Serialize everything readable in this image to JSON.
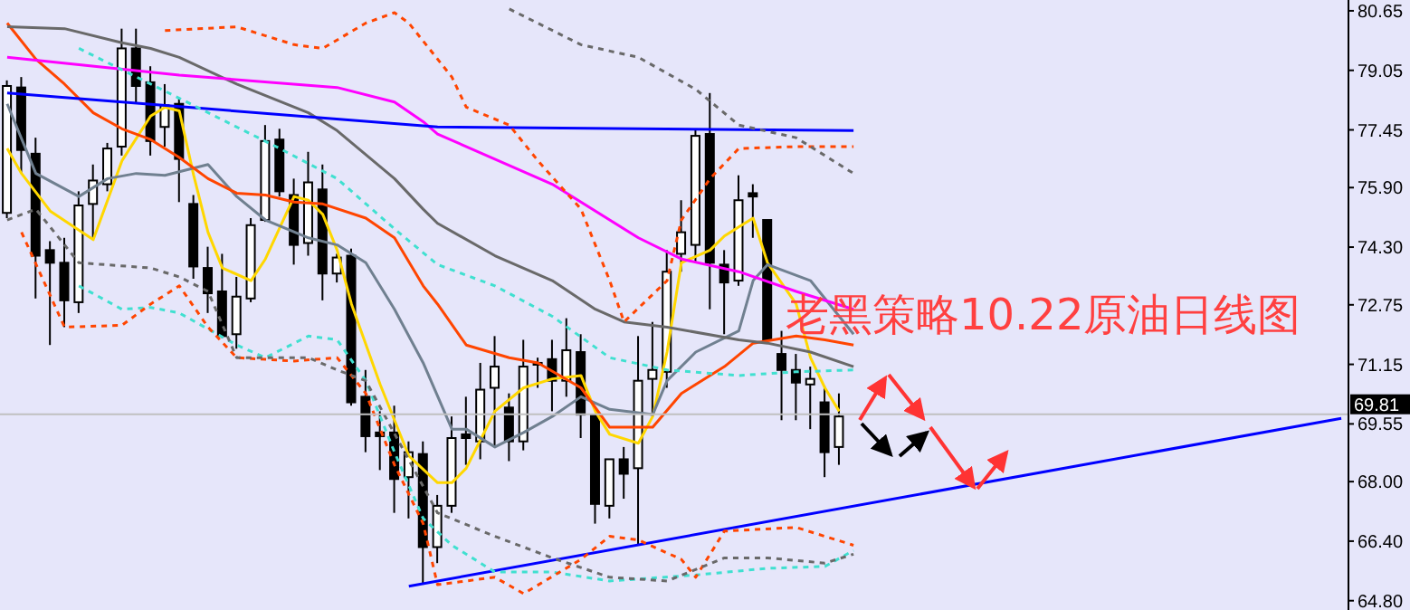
{
  "chart_data": {
    "type": "candlestick",
    "title": "老黑策略10.22原油日线图",
    "categories": [
      null,
      null,
      null,
      null,
      null,
      null,
      null,
      null,
      null,
      null,
      null,
      null,
      null,
      null,
      null,
      null,
      null,
      null,
      null,
      null,
      null,
      null,
      null,
      null,
      null,
      null,
      null,
      null,
      null,
      null,
      null,
      null,
      null,
      null,
      null,
      null,
      null,
      null,
      null,
      null,
      null,
      null,
      null,
      null,
      null,
      null,
      null,
      null,
      null,
      null,
      null,
      null,
      null,
      null,
      null,
      null,
      null,
      null,
      null,
      null,
      null,
      null,
      null,
      null,
      null,
      null,
      null,
      null,
      null,
      null,
      null,
      null,
      null,
      null,
      null,
      null,
      null,
      null,
      null,
      null,
      null,
      null,
      null,
      null,
      null,
      null,
      null,
      null,
      null,
      null,
      null,
      null,
      null,
      null
    ],
    "ohlc": [
      [
        75.22,
        78.78,
        75.08,
        78.63
      ],
      [
        78.59,
        78.87,
        76.28,
        76.91
      ],
      [
        76.81,
        77.24,
        72.92,
        74.07
      ],
      [
        74.22,
        74.46,
        71.67,
        73.88
      ],
      [
        73.88,
        74.55,
        72.15,
        72.87
      ],
      [
        72.82,
        75.8,
        72.53,
        75.42
      ],
      [
        75.46,
        76.52,
        74.55,
        76.09
      ],
      [
        75.99,
        77.1,
        75.8,
        76.95
      ],
      [
        77.0,
        80.17,
        76.76,
        79.64
      ],
      [
        79.64,
        80.17,
        78.15,
        78.63
      ],
      [
        78.73,
        79.16,
        76.76,
        77.15
      ],
      [
        77.53,
        78.68,
        77.0,
        78.11
      ],
      [
        78.15,
        78.3,
        75.51,
        76.67
      ],
      [
        75.46,
        75.7,
        73.45,
        73.78
      ],
      [
        73.74,
        74.31,
        72.53,
        73.06
      ],
      [
        73.11,
        74.12,
        71.86,
        71.91
      ],
      [
        71.96,
        73.5,
        71.57,
        72.97
      ],
      [
        72.92,
        75.08,
        72.82,
        74.89
      ],
      [
        75.03,
        77.58,
        74.98,
        77.15
      ],
      [
        77.19,
        77.48,
        75.66,
        75.8
      ],
      [
        75.7,
        76.14,
        73.83,
        74.36
      ],
      [
        74.41,
        76.86,
        74.07,
        76.04
      ],
      [
        75.85,
        76.52,
        72.87,
        73.59
      ],
      [
        73.59,
        74.12,
        73.35,
        74.02
      ],
      [
        74.07,
        74.26,
        70.04,
        70.13
      ],
      [
        70.28,
        71.0,
        68.79,
        69.22
      ],
      [
        69.32,
        69.89,
        68.31,
        69.22
      ],
      [
        69.32,
        70.04,
        67.16,
        68.07
      ],
      [
        68.12,
        69.08,
        67.01,
        68.79
      ],
      [
        68.74,
        69.08,
        65.23,
        66.24
      ],
      [
        66.24,
        67.64,
        65.81,
        67.35
      ],
      [
        67.35,
        69.75,
        67.16,
        69.17
      ],
      [
        69.27,
        70.28,
        68.45,
        69.17
      ],
      [
        69.08,
        71.19,
        68.6,
        70.47
      ],
      [
        70.52,
        71.91,
        68.93,
        71.09
      ],
      [
        69.99,
        70.37,
        68.55,
        69.08
      ],
      [
        69.08,
        71.81,
        68.84,
        71.09
      ],
      [
        71.19,
        71.33,
        70.52,
        71.14
      ],
      [
        71.29,
        71.81,
        69.89,
        70.71
      ],
      [
        70.71,
        72.39,
        70.28,
        71.53
      ],
      [
        71.48,
        71.96,
        69.17,
        69.8
      ],
      [
        69.8,
        69.8,
        66.87,
        67.4
      ],
      [
        67.35,
        68.6,
        67.01,
        68.6
      ],
      [
        68.6,
        68.93,
        67.54,
        68.21
      ],
      [
        68.36,
        71.91,
        66.29,
        70.71
      ],
      [
        70.76,
        72.29,
        69.75,
        71.0
      ],
      [
        70.95,
        74.22,
        70.52,
        73.64
      ],
      [
        74.12,
        75.56,
        73.64,
        74.7
      ],
      [
        74.36,
        77.48,
        73.88,
        77.29
      ],
      [
        77.34,
        78.44,
        72.63,
        73.88
      ],
      [
        73.83,
        74.22,
        71.96,
        73.35
      ],
      [
        73.4,
        76.23,
        73.26,
        75.56
      ],
      [
        75.75,
        75.99,
        74.55,
        75.66
      ],
      [
        75.03,
        75.03,
        71.72,
        71.81
      ],
      [
        71.43,
        72.05,
        69.65,
        71.0
      ],
      [
        71.0,
        71.43,
        69.65,
        70.66
      ],
      [
        70.61,
        71.09,
        69.41,
        70.76
      ],
      [
        70.13,
        70.57,
        68.12,
        68.79
      ],
      [
        68.93,
        70.37,
        68.45,
        69.75
      ],
      null,
      null,
      null,
      null,
      null,
      null,
      null,
      null,
      null,
      null,
      null,
      null,
      null,
      null,
      null,
      null,
      null,
      null,
      null,
      null,
      null,
      null,
      null,
      null,
      null,
      null,
      null,
      null,
      null,
      null,
      null,
      null,
      null,
      null,
      null
    ],
    "series": [
      {
        "type": "line",
        "color": "#ffd700",
        "line_style": "solid",
        "values": [
          76.95,
          76.28,
          null,
          75.27,
          null,
          null,
          74.5,
          null,
          76.62,
          null,
          77.82,
          78.06,
          77.96,
          76.23,
          74.7,
          73.74,
          null,
          73.4,
          73.98,
          null,
          75.66,
          75.56,
          75.18,
          74.22,
          72.77,
          null,
          70.61,
          null,
          68.69,
          null,
          67.97,
          67.97,
          68.36,
          null,
          69.89,
          null,
          70.52,
          null,
          70.76,
          null,
          70.85,
          69.89,
          69.27,
          null,
          69.03,
          69.75,
          71.48,
          73.88,
          null,
          74.22,
          74.6,
          74.84,
          75.08,
          73.88,
          null,
          72.77,
          71.33,
          70.52,
          69.89,
          null,
          null,
          null,
          null,
          null,
          null,
          null,
          null,
          null,
          null,
          null,
          null,
          null,
          null,
          null,
          null,
          null,
          null,
          null,
          null,
          null,
          null,
          null,
          null,
          null,
          null,
          null,
          null,
          null,
          null,
          null,
          null,
          null,
          null,
          null
        ]
      },
      {
        "type": "line",
        "color": "#708090",
        "line_style": "solid",
        "values": [
          78.15,
          null,
          76.28,
          null,
          null,
          75.66,
          null,
          76.14,
          null,
          76.28,
          null,
          76.23,
          null,
          null,
          76.52,
          null,
          75.66,
          null,
          75.03,
          null,
          null,
          74.55,
          null,
          74.36,
          null,
          73.88,
          null,
          72.63,
          null,
          71.19,
          null,
          69.41,
          69.41,
          null,
          68.93,
          null,
          69.32,
          null,
          69.75,
          null,
          70.28,
          null,
          69.94,
          null,
          null,
          69.8,
          70.71,
          null,
          71.48,
          null,
          null,
          72.05,
          73.4,
          73.83,
          null,
          null,
          73.4,
          null,
          null,
          71.96,
          null,
          null,
          null,
          null,
          null,
          null,
          null,
          null,
          null,
          null,
          null,
          null,
          null,
          null,
          null,
          null,
          null,
          null,
          null,
          null,
          null,
          null,
          null,
          null,
          null,
          null,
          null,
          null,
          null,
          null,
          null,
          null,
          null,
          null
        ]
      },
      {
        "type": "line",
        "color": "#ff4500",
        "line_style": "solid",
        "values": [
          80.32,
          null,
          79.35,
          null,
          78.68,
          null,
          77.91,
          null,
          77.48,
          null,
          77.19,
          null,
          76.71,
          null,
          76.14,
          null,
          75.75,
          null,
          75.7,
          null,
          75.51,
          null,
          75.46,
          null,
          null,
          75.08,
          null,
          74.55,
          null,
          73.26,
          72.77,
          null,
          71.67,
          null,
          null,
          71.33,
          null,
          71.19,
          null,
          null,
          70.52,
          null,
          69.46,
          null,
          null,
          69.46,
          null,
          70.37,
          null,
          null,
          71.09,
          null,
          71.72,
          null,
          null,
          71.91,
          null,
          71.81,
          null,
          71.67,
          null,
          null,
          null,
          null,
          null,
          null,
          null,
          null,
          null,
          null,
          null,
          null,
          null,
          null,
          null,
          null,
          null,
          null,
          null,
          null,
          null,
          null,
          null,
          null,
          null,
          null,
          null,
          null,
          null,
          null,
          null,
          null,
          null,
          null
        ]
      },
      {
        "type": "line",
        "color": "#696969",
        "line_style": "solid",
        "values": [
          80.22,
          null,
          null,
          null,
          80.17,
          null,
          null,
          null,
          79.79,
          null,
          79.64,
          null,
          79.4,
          null,
          null,
          null,
          78.68,
          null,
          null,
          null,
          null,
          77.91,
          null,
          77.43,
          null,
          null,
          null,
          76.14,
          null,
          75.32,
          74.94,
          null,
          null,
          null,
          74.07,
          null,
          null,
          null,
          73.4,
          null,
          null,
          72.63,
          null,
          72.29,
          null,
          null,
          72.15,
          null,
          null,
          null,
          null,
          71.81,
          null,
          71.72,
          null,
          null,
          71.48,
          null,
          null,
          71.09,
          null,
          null,
          null,
          null,
          null,
          null,
          null,
          null,
          null,
          null,
          null,
          null,
          null,
          null,
          null,
          null,
          null,
          null,
          null,
          null,
          null,
          null,
          null,
          null,
          null,
          null,
          null,
          null,
          null,
          null,
          null,
          null,
          null,
          null
        ]
      },
      {
        "type": "line",
        "color": "#ff00ff",
        "line_style": "solid",
        "values": [
          79.4,
          null,
          null,
          null,
          null,
          null,
          null,
          null,
          null,
          null,
          null,
          null,
          78.92,
          null,
          null,
          null,
          null,
          null,
          null,
          null,
          null,
          null,
          null,
          78.59,
          null,
          null,
          null,
          78.2,
          null,
          77.67,
          77.34,
          null,
          null,
          null,
          null,
          null,
          null,
          null,
          75.99,
          null,
          null,
          null,
          null,
          null,
          74.55,
          null,
          null,
          73.98,
          null,
          null,
          null,
          73.64,
          null,
          null,
          null,
          73.11,
          null,
          null,
          null,
          72.63,
          null,
          null,
          null,
          null,
          null,
          null,
          null,
          null,
          null,
          null,
          null,
          null,
          null,
          null,
          null,
          null,
          null,
          null,
          null,
          null,
          null,
          null,
          null,
          null,
          null,
          null,
          null,
          null,
          null,
          null,
          null,
          null,
          null,
          null
        ]
      },
      {
        "type": "line",
        "color": "#0000ff",
        "line_style": "solid",
        "values": [
          78.44,
          null,
          null,
          null,
          null,
          null,
          null,
          null,
          null,
          null,
          null,
          null,
          null,
          null,
          null,
          null,
          null,
          null,
          null,
          null,
          null,
          null,
          null,
          null,
          null,
          null,
          null,
          null,
          null,
          null,
          77.53,
          null,
          null,
          null,
          null,
          null,
          null,
          null,
          null,
          null,
          null,
          null,
          null,
          null,
          null,
          null,
          null,
          null,
          null,
          null,
          null,
          null,
          null,
          null,
          null,
          null,
          null,
          null,
          null,
          77.43,
          null,
          null,
          null,
          null,
          null,
          null,
          null,
          null,
          null,
          null,
          null,
          null,
          null,
          null,
          null,
          null,
          null,
          null,
          null,
          null,
          null,
          null,
          null,
          null,
          null,
          null,
          null,
          null,
          null,
          null,
          null,
          null,
          null,
          null
        ]
      },
      {
        "type": "line",
        "color": "#0000ff",
        "line_style": "solid",
        "values": [
          null,
          null,
          null,
          null,
          null,
          null,
          null,
          null,
          null,
          null,
          null,
          null,
          null,
          null,
          null,
          null,
          null,
          null,
          null,
          null,
          null,
          null,
          null,
          null,
          null,
          null,
          null,
          null,
          65.19,
          null,
          null,
          null,
          null,
          null,
          null,
          null,
          null,
          null,
          null,
          null,
          null,
          null,
          null,
          null,
          null,
          null,
          null,
          null,
          null,
          null,
          null,
          null,
          null,
          null,
          null,
          null,
          null,
          null,
          null,
          null,
          null,
          null,
          null,
          null,
          null,
          null,
          null,
          null,
          null,
          null,
          null,
          null,
          null,
          null,
          null,
          null,
          null,
          null,
          null,
          null,
          null,
          null,
          null,
          null,
          null,
          null,
          null,
          null,
          null,
          null,
          null,
          null,
          null,
          69.7
        ]
      },
      {
        "type": "line",
        "color": "#40e0d0",
        "line_style": "dashed",
        "values": [
          null,
          null,
          null,
          null,
          null,
          79.64,
          null,
          null,
          null,
          null,
          null,
          null,
          78.3,
          null,
          null,
          null,
          null,
          null,
          null,
          76.95,
          null,
          null,
          null,
          76.14,
          null,
          null,
          null,
          74.79,
          null,
          null,
          73.83,
          null,
          null,
          null,
          73.26,
          null,
          null,
          null,
          72.44,
          null,
          null,
          null,
          71.33,
          null,
          null,
          null,
          71.0,
          null,
          null,
          null,
          null,
          70.85,
          null,
          null,
          null,
          70.95,
          null,
          null,
          null,
          71.0,
          null,
          null,
          null,
          null,
          null,
          null,
          null,
          null,
          null,
          null,
          null,
          null,
          null,
          null,
          null,
          null,
          null,
          null,
          null,
          null,
          null,
          null,
          null,
          null,
          null,
          null,
          null,
          null,
          null,
          null,
          null,
          null,
          null,
          null
        ]
      },
      {
        "type": "line",
        "color": "#40e0d0",
        "line_style": "dashed",
        "values": [
          null,
          null,
          null,
          null,
          null,
          73.26,
          null,
          null,
          72.63,
          null,
          72.68,
          null,
          72.53,
          null,
          null,
          null,
          71.67,
          null,
          71.33,
          null,
          null,
          71.91,
          null,
          71.81,
          null,
          70.71,
          null,
          68.79,
          null,
          67.01,
          null,
          66.29,
          null,
          null,
          65.57,
          null,
          null,
          null,
          65.57,
          null,
          null,
          null,
          65.33,
          null,
          null,
          null,
          null,
          null,
          65.49,
          null,
          null,
          null,
          null,
          65.67,
          null,
          null,
          null,
          65.72,
          null,
          66.15,
          null,
          null,
          null,
          null,
          null,
          null,
          null,
          null,
          null,
          null,
          null,
          null,
          null,
          null,
          null,
          null,
          null,
          null,
          null,
          null,
          null,
          null,
          null,
          null,
          null,
          null,
          null,
          null,
          null,
          null,
          null,
          null,
          null,
          null
        ]
      },
      {
        "type": "line",
        "color": "#ff4500",
        "line_style": "dashed",
        "values": [
          null,
          null,
          null,
          null,
          null,
          null,
          null,
          null,
          null,
          null,
          null,
          80.12,
          null,
          null,
          null,
          null,
          80.22,
          null,
          null,
          null,
          79.74,
          null,
          79.64,
          null,
          null,
          80.32,
          null,
          80.6,
          80.32,
          null,
          null,
          78.87,
          78.06,
          null,
          null,
          77.58,
          null,
          76.62,
          null,
          null,
          75.32,
          null,
          73.4,
          72.29,
          null,
          null,
          73.4,
          75.03,
          null,
          76.14,
          null,
          76.95,
          null,
          null,
          null,
          77.0,
          null,
          null,
          null,
          77.0,
          null,
          null,
          null,
          null,
          null,
          null,
          null,
          null,
          null,
          null,
          null,
          null,
          null,
          null,
          null,
          null,
          null,
          null,
          null,
          null,
          null,
          null,
          null,
          null,
          null,
          null,
          null,
          null,
          null,
          null,
          null,
          null,
          null,
          null
        ]
      },
      {
        "type": "line",
        "color": "#ff4500",
        "line_style": "dashed",
        "values": [
          null,
          74.7,
          null,
          null,
          72.15,
          null,
          null,
          null,
          72.2,
          null,
          72.77,
          null,
          73.26,
          null,
          72.15,
          null,
          71.33,
          null,
          null,
          null,
          71.24,
          null,
          null,
          71.33,
          null,
          70.37,
          null,
          68.45,
          null,
          66.87,
          65.23,
          null,
          null,
          null,
          65.43,
          null,
          64.99,
          null,
          null,
          null,
          65.91,
          null,
          66.53,
          null,
          66.43,
          null,
          null,
          65.91,
          65.43,
          null,
          66.67,
          null,
          null,
          null,
          null,
          66.77,
          null,
          null,
          null,
          66.29,
          null,
          null,
          null,
          null,
          null,
          null,
          null,
          null,
          null,
          null,
          null,
          null,
          null,
          null,
          null,
          null,
          null,
          null,
          null,
          null,
          null,
          null,
          null,
          null,
          null,
          null,
          null,
          null,
          null,
          null,
          null,
          null,
          null,
          null
        ]
      },
      {
        "type": "line",
        "color": "#696969",
        "line_style": "dashed",
        "values": [
          null,
          null,
          null,
          null,
          null,
          null,
          null,
          null,
          null,
          null,
          null,
          null,
          null,
          null,
          null,
          null,
          null,
          null,
          null,
          null,
          null,
          null,
          null,
          null,
          null,
          null,
          null,
          null,
          null,
          null,
          null,
          null,
          null,
          null,
          null,
          80.7,
          null,
          null,
          null,
          null,
          79.74,
          null,
          null,
          null,
          79.4,
          null,
          null,
          null,
          78.54,
          null,
          null,
          77.58,
          null,
          null,
          null,
          77.24,
          null,
          null,
          null,
          76.28,
          null,
          null,
          null,
          null,
          null,
          null,
          null,
          null,
          null,
          null,
          null,
          null,
          null,
          null,
          null,
          null,
          null,
          null,
          null,
          null,
          null,
          null,
          null,
          null,
          null,
          null,
          null,
          null,
          null,
          null,
          null,
          null,
          null,
          null
        ]
      },
      {
        "type": "line",
        "color": "#696969",
        "line_style": "dashed",
        "values": [
          75.03,
          null,
          75.32,
          null,
          null,
          73.88,
          null,
          null,
          null,
          null,
          73.74,
          null,
          73.5,
          null,
          73.11,
          null,
          71.33,
          null,
          null,
          null,
          null,
          71.33,
          null,
          71.0,
          null,
          70.71,
          null,
          null,
          null,
          null,
          67.16,
          null,
          null,
          null,
          66.53,
          null,
          null,
          null,
          65.95,
          null,
          null,
          null,
          65.43,
          null,
          null,
          null,
          65.33,
          null,
          null,
          null,
          65.95,
          null,
          null,
          65.95,
          null,
          null,
          null,
          65.81,
          null,
          66.05,
          null,
          null,
          null,
          null,
          null,
          null,
          null,
          null,
          null,
          null,
          null,
          null,
          null,
          null,
          null,
          null,
          null,
          null,
          null,
          null,
          null,
          null,
          null,
          null,
          null,
          null,
          null,
          null,
          null,
          null,
          null,
          null,
          null,
          null
        ]
      }
    ],
    "ylim": [
      64.55,
      80.94
    ],
    "yticks": [
      {
        "value": 64.8,
        "label": "64.80"
      },
      {
        "value": 66.4,
        "label": "66.40"
      },
      {
        "value": 68.0,
        "label": "68.00"
      },
      {
        "value": 69.55,
        "label": "69.55"
      },
      {
        "value": 71.15,
        "label": "71.15"
      },
      {
        "value": 72.75,
        "label": "72.75"
      },
      {
        "value": 74.3,
        "label": "74.30"
      },
      {
        "value": 75.9,
        "label": "75.90"
      },
      {
        "value": 77.45,
        "label": "77.45"
      },
      {
        "value": 79.05,
        "label": "79.05"
      },
      {
        "value": 80.65,
        "label": "80.65"
      }
    ],
    "ref_lines": [
      {
        "axis": "y",
        "value": 69.81,
        "label": "69.81",
        "color": "#c0c0c0"
      }
    ],
    "tick_labels": "y",
    "marker": "none"
  }
}
